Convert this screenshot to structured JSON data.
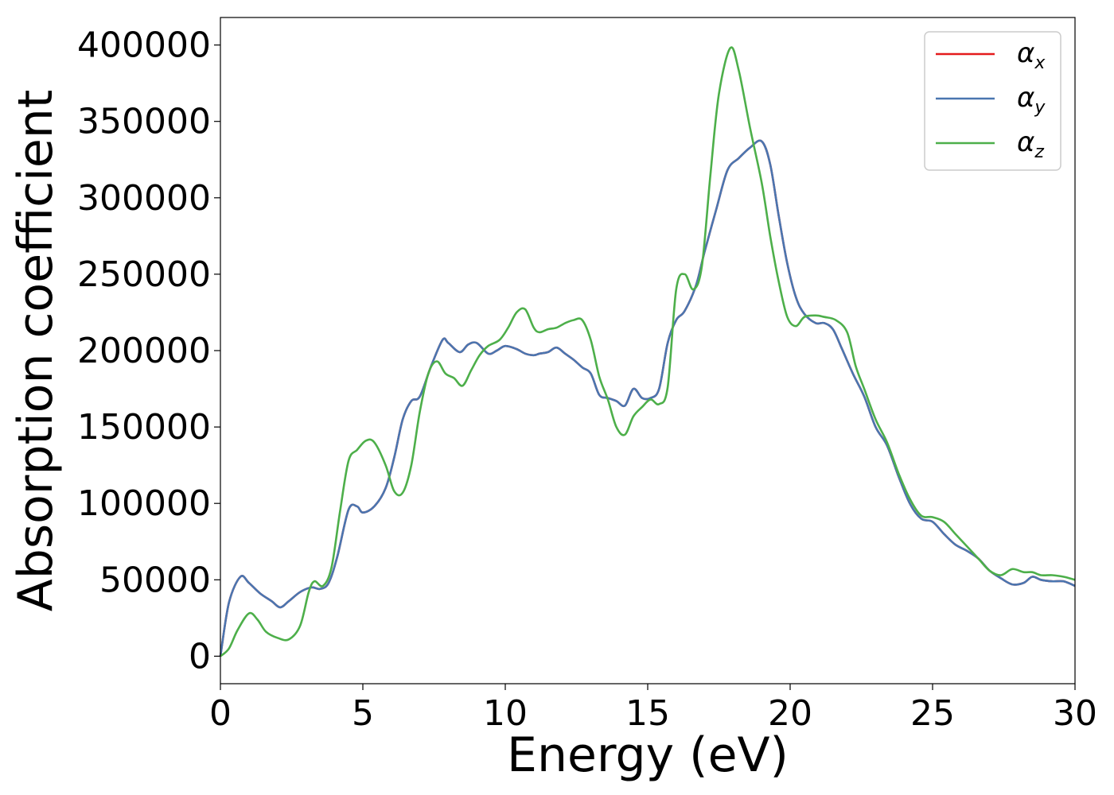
{
  "chart_data": {
    "type": "line",
    "title": "",
    "xlabel": "Energy (eV)",
    "ylabel": "Absorption coefficient",
    "xlim": [
      0,
      30
    ],
    "ylim": [
      -18000,
      418000
    ],
    "xticks": [
      0,
      5,
      10,
      15,
      20,
      25,
      30
    ],
    "xtick_labels": [
      "0",
      "5",
      "10",
      "15",
      "20",
      "25",
      "30"
    ],
    "yticks": [
      0,
      50000,
      100000,
      150000,
      200000,
      250000,
      300000,
      350000,
      400000
    ],
    "ytick_labels": [
      "0",
      "50000",
      "100000",
      "150000",
      "200000",
      "250000",
      "300000",
      "350000",
      "400000"
    ],
    "grid": false,
    "legend_position": "top-right",
    "series": [
      {
        "name": "α",
        "subscript": "x",
        "color": "#e41a1c",
        "x": [
          0,
          0.3,
          0.7,
          1.0,
          1.4,
          1.8,
          2.1,
          2.4,
          2.8,
          3.2,
          3.5,
          3.8,
          4.1,
          4.5,
          4.8,
          5.0,
          5.4,
          5.8,
          6.1,
          6.4,
          6.7,
          7.0,
          7.4,
          7.8,
          8.0,
          8.4,
          8.7,
          9.0,
          9.4,
          9.7,
          10.0,
          10.4,
          10.7,
          11.0,
          11.2,
          11.5,
          11.8,
          12.1,
          12.4,
          12.7,
          13.0,
          13.3,
          13.6,
          13.9,
          14.2,
          14.5,
          14.8,
          15.1,
          15.4,
          15.7,
          16.0,
          16.3,
          16.7,
          17.0,
          17.4,
          17.8,
          18.2,
          18.6,
          19.0,
          19.3,
          19.6,
          19.9,
          20.2,
          20.5,
          20.9,
          21.2,
          21.5,
          21.8,
          22.2,
          22.6,
          23.0,
          23.4,
          23.8,
          24.2,
          24.6,
          25.0,
          25.4,
          25.8,
          26.2,
          26.6,
          27.0,
          27.4,
          27.8,
          28.2,
          28.5,
          28.8,
          29.2,
          29.6,
          30.0
        ],
        "values": [
          0,
          35000,
          52000,
          48000,
          41000,
          36000,
          32000,
          36000,
          42000,
          45000,
          44000,
          48000,
          65000,
          96000,
          98000,
          94000,
          98000,
          110000,
          130000,
          155000,
          167000,
          170000,
          190000,
          207000,
          205000,
          199000,
          204000,
          205000,
          198000,
          200000,
          203000,
          201000,
          198000,
          197000,
          198000,
          199000,
          202000,
          198000,
          194000,
          189000,
          185000,
          171000,
          169000,
          167000,
          164000,
          175000,
          169000,
          169000,
          175000,
          205000,
          220000,
          226000,
          243000,
          265000,
          292000,
          318000,
          326000,
          333000,
          337000,
          322000,
          288000,
          257000,
          235000,
          224000,
          218000,
          218000,
          214000,
          202000,
          185000,
          170000,
          150000,
          138000,
          118000,
          100000,
          90000,
          88000,
          80000,
          73000,
          69000,
          64000,
          56000,
          51000,
          47000,
          48000,
          52000,
          50000,
          49000,
          49000,
          46000
        ]
      },
      {
        "name": "α",
        "subscript": "y",
        "color": "#4a76b0",
        "x": [
          0,
          0.3,
          0.7,
          1.0,
          1.4,
          1.8,
          2.1,
          2.4,
          2.8,
          3.2,
          3.5,
          3.8,
          4.1,
          4.5,
          4.8,
          5.0,
          5.4,
          5.8,
          6.1,
          6.4,
          6.7,
          7.0,
          7.4,
          7.8,
          8.0,
          8.4,
          8.7,
          9.0,
          9.4,
          9.7,
          10.0,
          10.4,
          10.7,
          11.0,
          11.2,
          11.5,
          11.8,
          12.1,
          12.4,
          12.7,
          13.0,
          13.3,
          13.6,
          13.9,
          14.2,
          14.5,
          14.8,
          15.1,
          15.4,
          15.7,
          16.0,
          16.3,
          16.7,
          17.0,
          17.4,
          17.8,
          18.2,
          18.6,
          19.0,
          19.3,
          19.6,
          19.9,
          20.2,
          20.5,
          20.9,
          21.2,
          21.5,
          21.8,
          22.2,
          22.6,
          23.0,
          23.4,
          23.8,
          24.2,
          24.6,
          25.0,
          25.4,
          25.8,
          26.2,
          26.6,
          27.0,
          27.4,
          27.8,
          28.2,
          28.5,
          28.8,
          29.2,
          29.6,
          30.0
        ],
        "values": [
          0,
          35000,
          52000,
          48000,
          41000,
          36000,
          32000,
          36000,
          42000,
          45000,
          44000,
          48000,
          65000,
          96000,
          98000,
          94000,
          98000,
          110000,
          130000,
          155000,
          167000,
          170000,
          190000,
          207000,
          205000,
          199000,
          204000,
          205000,
          198000,
          200000,
          203000,
          201000,
          198000,
          197000,
          198000,
          199000,
          202000,
          198000,
          194000,
          189000,
          185000,
          171000,
          169000,
          167000,
          164000,
          175000,
          169000,
          169000,
          175000,
          205000,
          220000,
          226000,
          243000,
          265000,
          292000,
          318000,
          326000,
          333000,
          337000,
          322000,
          288000,
          257000,
          235000,
          224000,
          218000,
          218000,
          214000,
          202000,
          185000,
          170000,
          150000,
          138000,
          118000,
          100000,
          90000,
          88000,
          80000,
          73000,
          69000,
          64000,
          56000,
          51000,
          47000,
          48000,
          52000,
          50000,
          49000,
          49000,
          46000
        ]
      },
      {
        "name": "α",
        "subscript": "z",
        "color": "#4daf4a",
        "x": [
          0,
          0.3,
          0.6,
          1.0,
          1.3,
          1.6,
          2.0,
          2.4,
          2.8,
          3.1,
          3.3,
          3.6,
          3.9,
          4.2,
          4.5,
          4.8,
          5.1,
          5.4,
          5.8,
          6.1,
          6.4,
          6.7,
          7.0,
          7.3,
          7.6,
          7.9,
          8.2,
          8.5,
          8.8,
          9.1,
          9.4,
          9.8,
          10.1,
          10.4,
          10.7,
          11.0,
          11.2,
          11.5,
          11.8,
          12.1,
          12.4,
          12.7,
          13.0,
          13.3,
          13.6,
          13.9,
          14.2,
          14.5,
          14.8,
          15.1,
          15.4,
          15.7,
          16.0,
          16.3,
          16.6,
          16.9,
          17.2,
          17.5,
          17.9,
          18.2,
          18.6,
          19.0,
          19.3,
          19.6,
          19.9,
          20.2,
          20.5,
          20.9,
          21.2,
          21.6,
          22.0,
          22.3,
          22.6,
          23.0,
          23.4,
          23.8,
          24.2,
          24.6,
          25.0,
          25.4,
          25.8,
          26.2,
          26.6,
          27.0,
          27.4,
          27.8,
          28.2,
          28.5,
          28.8,
          29.2,
          29.6,
          30.0
        ],
        "values": [
          0,
          5000,
          17000,
          28000,
          24000,
          16000,
          12000,
          11000,
          20000,
          42000,
          49000,
          46000,
          58000,
          95000,
          128000,
          135000,
          141000,
          140000,
          125000,
          108000,
          107000,
          125000,
          160000,
          185000,
          193000,
          185000,
          182000,
          177000,
          187000,
          197000,
          203000,
          207000,
          215000,
          225000,
          227000,
          215000,
          212000,
          214000,
          215000,
          218000,
          220000,
          220000,
          207000,
          183000,
          168000,
          150000,
          145000,
          157000,
          163000,
          168000,
          165000,
          176000,
          240000,
          250000,
          240000,
          255000,
          315000,
          368000,
          398000,
          383000,
          345000,
          310000,
          275000,
          245000,
          222000,
          216000,
          222000,
          223000,
          222000,
          220000,
          212000,
          190000,
          175000,
          155000,
          140000,
          120000,
          103000,
          92000,
          91000,
          88000,
          80000,
          72000,
          64000,
          56000,
          53000,
          57000,
          55000,
          55000,
          53000,
          53000,
          52000,
          50000
        ]
      }
    ]
  }
}
